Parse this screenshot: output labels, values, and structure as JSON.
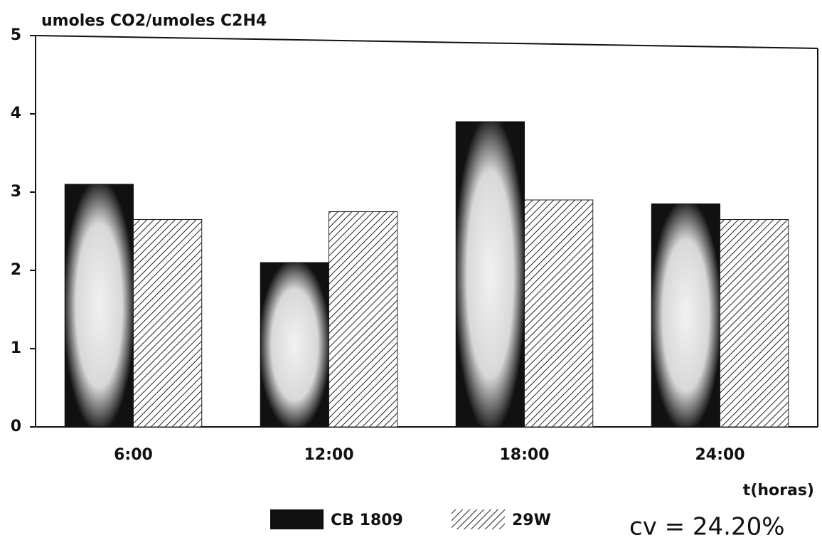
{
  "chart_data": {
    "type": "bar",
    "y_label": "umoles CO2/umoles C2H4",
    "x_label": "t(horas)",
    "annotation": "cv = 24.20%",
    "categories": [
      "6:00",
      "12:00",
      "18:00",
      "24:00"
    ],
    "series": [
      {
        "name": "CB 1809",
        "color": "#111111",
        "pattern": "mottled",
        "values": [
          3.1,
          2.1,
          3.9,
          2.85
        ]
      },
      {
        "name": "29W",
        "color": "#222222",
        "pattern": "hatch",
        "values": [
          2.65,
          2.75,
          2.9,
          2.65
        ]
      }
    ],
    "ylim": [
      0,
      5
    ],
    "yticks": [
      0,
      1,
      2,
      3,
      4,
      5
    ],
    "grid": false
  }
}
